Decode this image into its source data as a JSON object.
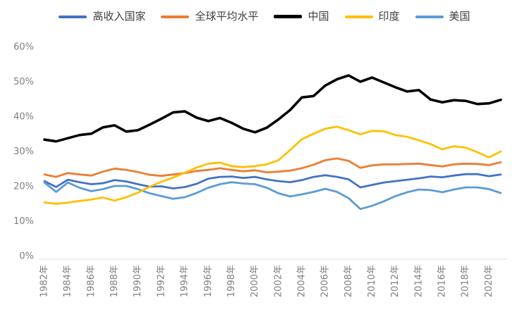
{
  "chart_data": {
    "type": "line",
    "title": "",
    "xlabel": "",
    "ylabel": "",
    "grid": "none",
    "legend_position": "top",
    "x_years": [
      1982,
      1983,
      1984,
      1985,
      1986,
      1987,
      1988,
      1989,
      1990,
      1991,
      1992,
      1993,
      1994,
      1995,
      1996,
      1997,
      1998,
      1999,
      2000,
      2001,
      2002,
      2003,
      2004,
      2005,
      2006,
      2007,
      2008,
      2009,
      2010,
      2011,
      2012,
      2013,
      2014,
      2015,
      2016,
      2017,
      2018,
      2019,
      2020,
      2021
    ],
    "x_tick_labels": [
      "1982年",
      "1984年",
      "1986年",
      "1988年",
      "1990年",
      "1992年",
      "1994年",
      "1996年",
      "1998年",
      "2000年",
      "2002年",
      "2004年",
      "2006年",
      "2008年",
      "2010年",
      "2012年",
      "2014年",
      "2016年",
      "2018年",
      "2020年"
    ],
    "y_axis": {
      "min": 0,
      "max": 60,
      "step": 10,
      "tick_labels": [
        "0%",
        "10%",
        "20%",
        "30%",
        "40%",
        "50%",
        "60%"
      ]
    },
    "draw_order": [
      0,
      1,
      4,
      3,
      2
    ],
    "series": [
      {
        "name": "高收入国家",
        "color": "#4472C4",
        "line_width": 2.8,
        "values": [
          21.6,
          19.9,
          22.0,
          21.3,
          20.7,
          21.0,
          21.9,
          21.5,
          20.7,
          20.0,
          20.1,
          19.5,
          19.9,
          20.8,
          22.3,
          22.8,
          22.9,
          22.5,
          22.8,
          22.1,
          21.6,
          21.3,
          21.9,
          22.8,
          23.3,
          22.8,
          22.1,
          19.8,
          20.5,
          21.2,
          21.6,
          22.0,
          22.4,
          22.9,
          22.7,
          23.2,
          23.6,
          23.6,
          23.0,
          23.5
        ]
      },
      {
        "name": "全球平均水平",
        "color": "#ED7D31",
        "line_width": 2.8,
        "values": [
          23.5,
          22.8,
          23.9,
          23.5,
          23.2,
          24.3,
          25.2,
          24.8,
          24.2,
          23.4,
          23.1,
          23.5,
          23.9,
          24.5,
          24.8,
          25.3,
          24.8,
          24.4,
          24.7,
          24.1,
          24.3,
          24.6,
          25.3,
          26.3,
          27.6,
          28.1,
          27.4,
          25.4,
          26.1,
          26.4,
          26.4,
          26.5,
          26.6,
          26.2,
          25.8,
          26.4,
          26.6,
          26.5,
          26.2,
          27.0
        ]
      },
      {
        "name": "中国",
        "color": "#000000",
        "line_width": 3.6,
        "values": [
          33.5,
          33.0,
          33.9,
          34.8,
          35.2,
          37.0,
          37.6,
          35.8,
          36.2,
          37.8,
          39.5,
          41.3,
          41.6,
          39.8,
          38.8,
          39.7,
          38.3,
          36.6,
          35.6,
          36.9,
          39.3,
          42.0,
          45.6,
          46.0,
          49.0,
          50.8,
          51.9,
          50.1,
          51.3,
          49.9,
          48.5,
          47.3,
          47.7,
          45.0,
          44.2,
          44.8,
          44.6,
          43.7,
          43.9,
          44.9
        ]
      },
      {
        "name": "印度",
        "color": "#FFC000",
        "line_width": 2.8,
        "values": [
          15.5,
          15.1,
          15.4,
          15.9,
          16.3,
          16.9,
          16.0,
          17.0,
          18.3,
          20.0,
          21.4,
          22.6,
          24.0,
          25.5,
          26.6,
          26.9,
          25.9,
          25.6,
          25.9,
          26.4,
          27.6,
          30.5,
          33.6,
          35.2,
          36.6,
          37.2,
          36.2,
          35.0,
          36.0,
          35.9,
          34.8,
          34.3,
          33.3,
          32.2,
          30.7,
          31.6,
          31.2,
          29.9,
          28.4,
          30.1
        ]
      },
      {
        "name": "美国",
        "color": "#5B9BD5",
        "line_width": 2.8,
        "values": [
          21.2,
          18.5,
          21.2,
          19.7,
          18.7,
          19.3,
          20.2,
          20.2,
          19.3,
          18.1,
          17.3,
          16.5,
          17.0,
          18.2,
          19.7,
          20.7,
          21.3,
          20.9,
          20.7,
          19.7,
          18.1,
          17.2,
          17.8,
          18.5,
          19.4,
          18.5,
          16.7,
          13.6,
          14.5,
          15.8,
          17.3,
          18.4,
          19.2,
          19.0,
          18.4,
          19.2,
          19.8,
          19.8,
          19.3,
          18.2
        ]
      }
    ]
  },
  "colors": {
    "background": "#ffffff",
    "axis_text": "#7f7f7f",
    "axis_line": "#d9d9d9",
    "legend_text": "#3f3f3f"
  }
}
